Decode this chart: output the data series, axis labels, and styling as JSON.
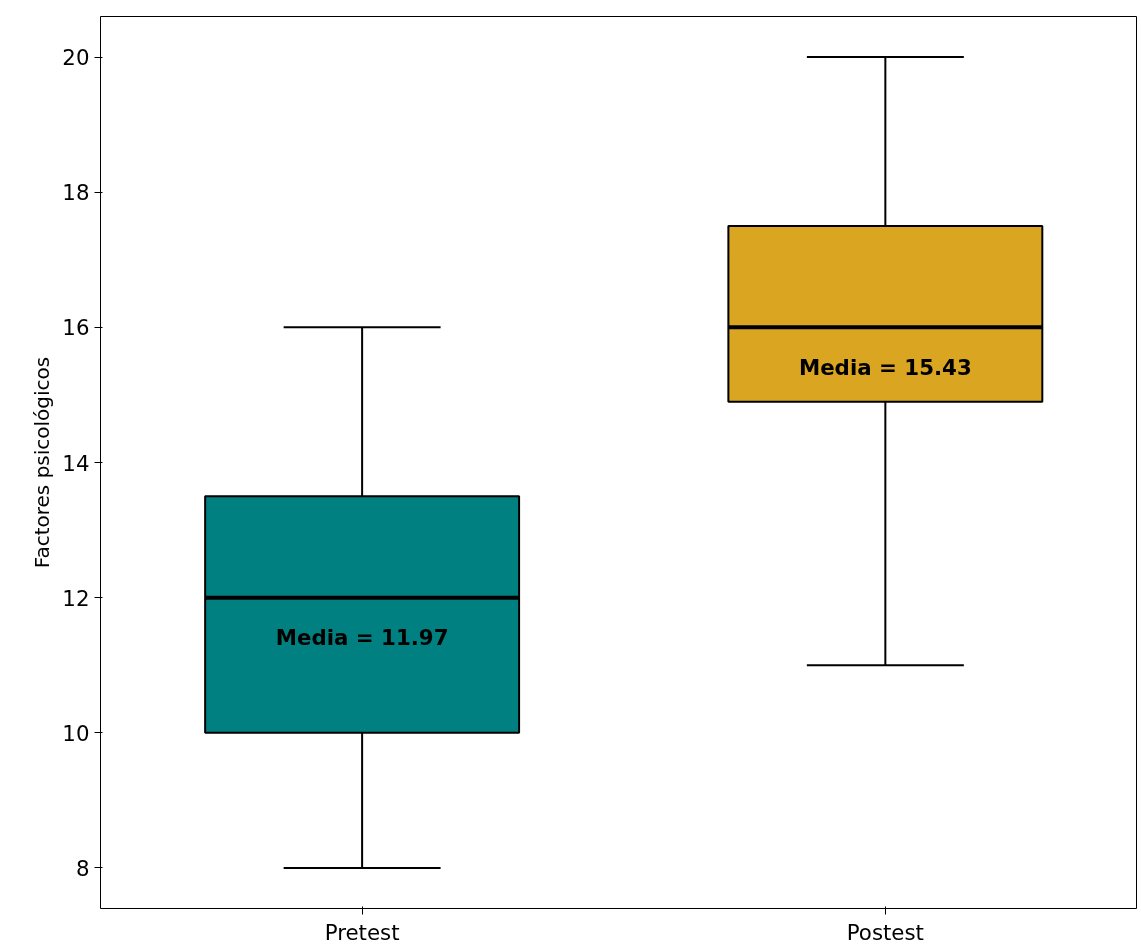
{
  "chart_data": {
    "type": "box",
    "ylabel": "Factores psicológicos",
    "categories": [
      "Pretest",
      "Postest"
    ],
    "colors": [
      "#008080",
      "#daa520"
    ],
    "boxes": [
      {
        "low": 8,
        "q1": 10,
        "median": 12,
        "q3": 13.5,
        "high": 16
      },
      {
        "low": 11,
        "q1": 14.9,
        "median": 16,
        "q3": 17.5,
        "high": 20
      }
    ],
    "ylim": [
      7.4,
      20.6
    ],
    "yticks": [
      8,
      10,
      12,
      14,
      16,
      18,
      20
    ],
    "grid": false,
    "annotations": [
      "Media = 11.97",
      "Media = 15.43"
    ]
  }
}
